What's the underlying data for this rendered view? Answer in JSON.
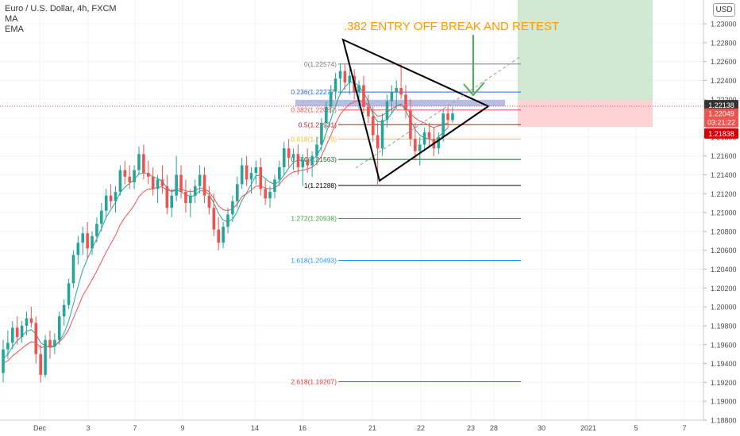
{
  "legend": {
    "symbol": "Euro / U.S. Dollar, 4h, FXCM",
    "ind1": "MA",
    "ind2": "EMA"
  },
  "currency_button": "USD",
  "annotation": ".382 ENTRY OFF BREAK AND RETEST",
  "colors": {
    "up": "#26a69a",
    "down": "#ef5350",
    "ma": "#26a69a",
    "ema": "#ef5350",
    "annotation": "#ff9800",
    "arrow": "#4caf50",
    "target_zone": "#c8e6c9",
    "stop_zone": "#ffcdd2",
    "entry_zone": "#9fa8da"
  },
  "chart_data": {
    "type": "candlestick",
    "ylim": [
      1.188,
      1.2316
    ],
    "y_ticks": [
      "1.23000",
      "1.22800",
      "1.22600",
      "1.22400",
      "1.22200",
      "1.22000",
      "1.21800",
      "1.21600",
      "1.21400",
      "1.21200",
      "1.21000",
      "1.20800",
      "1.20600",
      "1.20400",
      "1.20200",
      "1.20000",
      "1.19800",
      "1.19600",
      "1.19400",
      "1.19200",
      "1.19000",
      "1.18800"
    ],
    "x_ticks": [
      "Dec",
      "3",
      "7",
      "9",
      "14",
      "16",
      "21",
      "22",
      "23",
      "28",
      "30",
      "2021",
      "5",
      "7"
    ],
    "price_labels": [
      {
        "text": "1.22138",
        "price": 1.22138,
        "bg": "#333333"
      },
      {
        "text": "1.22049",
        "price": 1.22049,
        "bg": "#ef5350"
      },
      {
        "text": "03:21:22",
        "price": 1.21958,
        "bg": "#ef5350"
      },
      {
        "text": "1.21838",
        "price": 1.21838,
        "bg": "#d50000"
      }
    ],
    "fib_levels": [
      {
        "label": "0(1.22574)",
        "value": 1.22574,
        "color": "#787b86"
      },
      {
        "label": "0.236(1.22277)",
        "value": 1.22277,
        "color": "#2962ff"
      },
      {
        "label": "0.382(1.22087)",
        "value": 1.22087,
        "color": "#ef5350"
      },
      {
        "label": "0.5(1.21931)",
        "value": 1.21931,
        "color": "#b71c1c"
      },
      {
        "label": "0.618(1.21779)",
        "value": 1.21779,
        "color": "#fbc02d"
      },
      {
        "label": "0.786(1.21563)",
        "value": 1.21563,
        "color": "#1b5e20"
      },
      {
        "label": "1(1.21288)",
        "value": 1.21288,
        "color": "#000000"
      },
      {
        "label": "1.272(1.20938)",
        "value": 1.20938,
        "color": "#43a047"
      },
      {
        "label": "1.618(1.20493)",
        "value": 1.20493,
        "color": "#2196f3"
      },
      {
        "label": "2.618(1.19207)",
        "value": 1.19207,
        "color": "#e53935"
      }
    ],
    "candles": [
      [
        1.193,
        1.1965,
        1.192,
        1.1955
      ],
      [
        1.1955,
        1.1975,
        1.1945,
        1.1962
      ],
      [
        1.1962,
        1.1985,
        1.1955,
        1.1978
      ],
      [
        1.1978,
        1.199,
        1.196,
        1.1968
      ],
      [
        1.1968,
        1.1985,
        1.1962,
        1.198
      ],
      [
        1.198,
        1.1995,
        1.197,
        1.1988
      ],
      [
        1.1988,
        1.2,
        1.1978,
        1.1983
      ],
      [
        1.1983,
        1.199,
        1.194,
        1.195
      ],
      [
        1.195,
        1.196,
        1.192,
        1.1928
      ],
      [
        1.1928,
        1.197,
        1.1925,
        1.1965
      ],
      [
        1.1965,
        1.1975,
        1.1945,
        1.1958
      ],
      [
        1.1958,
        1.1972,
        1.195,
        1.1965
      ],
      [
        1.1965,
        1.1995,
        1.196,
        1.199
      ],
      [
        1.199,
        1.2008,
        1.198,
        1.2002
      ],
      [
        1.2002,
        1.203,
        1.1998,
        1.2025
      ],
      [
        1.2025,
        1.206,
        1.202,
        1.2055
      ],
      [
        1.2055,
        1.2075,
        1.2045,
        1.2068
      ],
      [
        1.2068,
        1.2085,
        1.2055,
        1.2078
      ],
      [
        1.2078,
        1.209,
        1.205,
        1.2062
      ],
      [
        1.2062,
        1.208,
        1.2055,
        1.2075
      ],
      [
        1.2075,
        1.2095,
        1.2068,
        1.2088
      ],
      [
        1.2088,
        1.211,
        1.208,
        1.2102
      ],
      [
        1.2102,
        1.2125,
        1.2095,
        1.2118
      ],
      [
        1.2118,
        1.213,
        1.2105,
        1.2112
      ],
      [
        1.2112,
        1.2128,
        1.21,
        1.2122
      ],
      [
        1.2122,
        1.215,
        1.2118,
        1.2145
      ],
      [
        1.2145,
        1.2155,
        1.213,
        1.2138
      ],
      [
        1.2138,
        1.215,
        1.2125,
        1.2132
      ],
      [
        1.2132,
        1.215,
        1.2125,
        1.2145
      ],
      [
        1.2145,
        1.217,
        1.214,
        1.2162
      ],
      [
        1.2162,
        1.2172,
        1.2135,
        1.2142
      ],
      [
        1.2142,
        1.2155,
        1.213,
        1.2138
      ],
      [
        1.2138,
        1.2148,
        1.2118,
        1.2125
      ],
      [
        1.2125,
        1.214,
        1.211,
        1.2135
      ],
      [
        1.2135,
        1.215,
        1.212,
        1.2128
      ],
      [
        1.2128,
        1.214,
        1.2098,
        1.2105
      ],
      [
        1.2105,
        1.2125,
        1.2095,
        1.2118
      ],
      [
        1.2118,
        1.216,
        1.2112,
        1.214
      ],
      [
        1.214,
        1.215,
        1.2115,
        1.2122
      ],
      [
        1.2122,
        1.2135,
        1.21,
        1.211
      ],
      [
        1.211,
        1.2125,
        1.2095,
        1.2118
      ],
      [
        1.2118,
        1.2135,
        1.211,
        1.2128
      ],
      [
        1.2128,
        1.215,
        1.212,
        1.214
      ],
      [
        1.214,
        1.2148,
        1.211,
        1.2118
      ],
      [
        1.2118,
        1.2128,
        1.2098,
        1.2105
      ],
      [
        1.2105,
        1.212,
        1.2075,
        1.2082
      ],
      [
        1.2082,
        1.2095,
        1.206,
        1.2068
      ],
      [
        1.2068,
        1.209,
        1.2062,
        1.2085
      ],
      [
        1.2085,
        1.2105,
        1.2078,
        1.2098
      ],
      [
        1.2098,
        1.2118,
        1.209,
        1.2112
      ],
      [
        1.2112,
        1.2138,
        1.2105,
        1.213
      ],
      [
        1.213,
        1.2158,
        1.2125,
        1.215
      ],
      [
        1.215,
        1.216,
        1.2128,
        1.2135
      ],
      [
        1.2135,
        1.2148,
        1.212,
        1.2142
      ],
      [
        1.2142,
        1.2155,
        1.213,
        1.2148
      ],
      [
        1.2148,
        1.2158,
        1.2118,
        1.2125
      ],
      [
        1.2125,
        1.2135,
        1.2108,
        1.2115
      ],
      [
        1.2115,
        1.2128,
        1.2105,
        1.2122
      ],
      [
        1.2122,
        1.214,
        1.2115,
        1.2135
      ],
      [
        1.2135,
        1.2155,
        1.2128,
        1.2148
      ],
      [
        1.2148,
        1.2175,
        1.214,
        1.2168
      ],
      [
        1.2168,
        1.2178,
        1.2148,
        1.2158
      ],
      [
        1.2158,
        1.2168,
        1.2145,
        1.2162
      ],
      [
        1.2162,
        1.2172,
        1.214,
        1.2148
      ],
      [
        1.2148,
        1.2162,
        1.2128,
        1.2155
      ],
      [
        1.2155,
        1.2168,
        1.2142,
        1.215
      ],
      [
        1.215,
        1.2165,
        1.2138,
        1.216
      ],
      [
        1.216,
        1.218,
        1.215,
        1.2172
      ],
      [
        1.2172,
        1.22,
        1.2165,
        1.2195
      ],
      [
        1.2195,
        1.2218,
        1.2188,
        1.2212
      ],
      [
        1.2212,
        1.2235,
        1.2205,
        1.2228
      ],
      [
        1.2228,
        1.2248,
        1.222,
        1.2242
      ],
      [
        1.2242,
        1.2258,
        1.2225,
        1.225
      ],
      [
        1.225,
        1.2257,
        1.223,
        1.2238
      ],
      [
        1.2238,
        1.2252,
        1.2225,
        1.2245
      ],
      [
        1.2245,
        1.2252,
        1.222,
        1.2228
      ],
      [
        1.2228,
        1.224,
        1.221,
        1.2235
      ],
      [
        1.2235,
        1.2245,
        1.2205,
        1.2212
      ],
      [
        1.2212,
        1.2225,
        1.2195,
        1.2202
      ],
      [
        1.2202,
        1.2212,
        1.2175,
        1.2182
      ],
      [
        1.2182,
        1.2195,
        1.2128,
        1.2168
      ],
      [
        1.2168,
        1.2205,
        1.216,
        1.2198
      ],
      [
        1.2198,
        1.2225,
        1.219,
        1.2218
      ],
      [
        1.2218,
        1.2235,
        1.2205,
        1.2228
      ],
      [
        1.2228,
        1.224,
        1.221,
        1.2232
      ],
      [
        1.2232,
        1.2258,
        1.222,
        1.2225
      ],
      [
        1.2225,
        1.2235,
        1.22,
        1.2208
      ],
      [
        1.2208,
        1.222,
        1.217,
        1.2178
      ],
      [
        1.2178,
        1.2195,
        1.2155,
        1.2165
      ],
      [
        1.2165,
        1.218,
        1.215,
        1.2172
      ],
      [
        1.2172,
        1.219,
        1.2165,
        1.2185
      ],
      [
        1.2185,
        1.2195,
        1.217,
        1.2178
      ],
      [
        1.2178,
        1.219,
        1.216,
        1.2168
      ],
      [
        1.2168,
        1.2185,
        1.2162,
        1.218
      ],
      [
        1.218,
        1.221,
        1.2175,
        1.2205
      ],
      [
        1.2205,
        1.2212,
        1.219,
        1.2198
      ],
      [
        1.2198,
        1.2212,
        1.2195,
        1.2205
      ]
    ],
    "ma": [
      1.1945,
      1.195,
      1.1958,
      1.1964,
      1.1969,
      1.1974,
      1.1976,
      1.1971,
      1.1962,
      1.1959,
      1.1957,
      1.1958,
      1.1964,
      1.1972,
      1.1985,
      1.2003,
      1.2022,
      1.2039,
      1.2051,
      1.2062,
      1.2072,
      1.2083,
      1.2095,
      1.2103,
      1.2111,
      1.2121,
      1.2127,
      1.2131,
      1.2135,
      1.2141,
      1.2142,
      1.2141,
      1.2138,
      1.2136,
      1.2133,
      1.2126,
      1.2122,
      1.2124,
      1.2122,
      1.2119,
      1.2117,
      1.2118,
      1.2123,
      1.2123,
      1.2119,
      1.211,
      1.2099,
      1.2092,
      1.209,
      1.2093,
      1.2101,
      1.2113,
      1.2121,
      1.213,
      1.2139,
      1.214,
      1.2136,
      1.2132,
      1.213,
      1.2133,
      1.214,
      1.2147,
      1.2153,
      1.2156,
      1.2155,
      1.2155,
      1.2156,
      1.216,
      1.217,
      1.2184,
      1.2199,
      1.2213,
      1.2226,
      1.2233,
      1.2238,
      1.2238,
      1.2234,
      1.2227,
      1.2218,
      1.2204,
      1.2196,
      1.2196,
      1.2199,
      1.2205,
      1.2213,
      1.2215,
      1.2208,
      1.2198,
      1.2188,
      1.2182,
      1.2179,
      1.2178,
      1.2176,
      1.218,
      1.2185,
      1.219
    ],
    "ema": [
      1.194,
      1.1943,
      1.1948,
      1.1952,
      1.1956,
      1.196,
      1.1963,
      1.1962,
      1.1957,
      1.1958,
      1.1958,
      1.1959,
      1.1963,
      1.1968,
      1.1976,
      1.1988,
      1.2,
      1.2012,
      1.202,
      1.2029,
      1.2038,
      1.2048,
      1.2058,
      1.2067,
      1.2076,
      1.2087,
      1.2095,
      1.2101,
      1.2108,
      1.2117,
      1.2122,
      1.2125,
      1.2125,
      1.2127,
      1.2127,
      1.2124,
      1.2123,
      1.2125,
      1.2125,
      1.2123,
      1.2122,
      1.2123,
      1.2126,
      1.2125,
      1.2122,
      1.2115,
      1.2107,
      1.2103,
      1.2102,
      1.2104,
      1.2109,
      1.2117,
      1.212,
      1.2124,
      1.2128,
      1.2128,
      1.2126,
      1.2125,
      1.2126,
      1.213,
      1.2136,
      1.214,
      1.2143,
      1.2144,
      1.2145,
      1.2146,
      1.2148,
      1.2152,
      1.216,
      1.2171,
      1.2182,
      1.2194,
      1.2204,
      1.221,
      1.2215,
      1.2217,
      1.2219,
      1.2217,
      1.2214,
      1.2207,
      1.2202,
      1.2203,
      1.2206,
      1.221,
      1.2213,
      1.2214,
      1.2211,
      1.2205,
      1.22,
      1.2197,
      1.2195,
      1.2192,
      1.219,
      1.2192,
      1.2193,
      1.2195
    ]
  }
}
